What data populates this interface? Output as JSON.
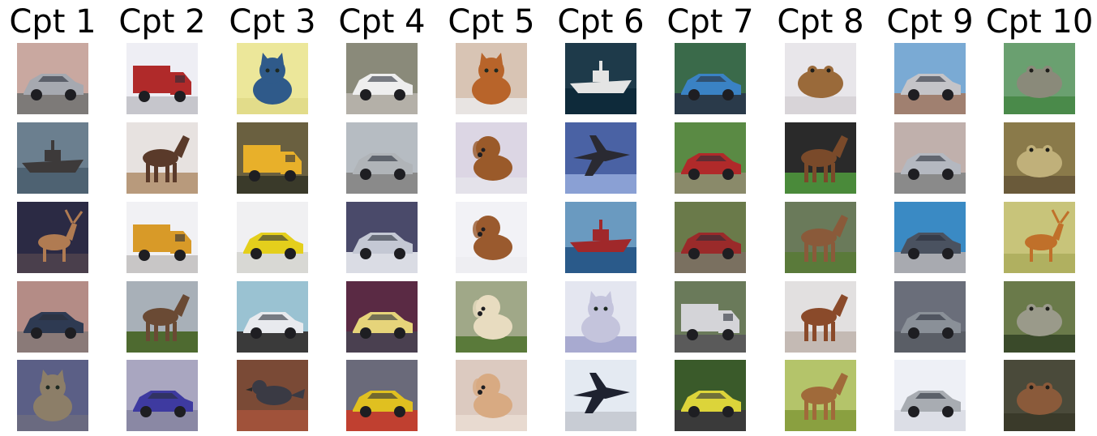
{
  "columns": [
    {
      "title": "Cpt 1",
      "images": [
        {
          "subject": "car",
          "colors": {
            "bg": "#c9a8a0",
            "main": "#a6a9b0",
            "ground": "#7d7a78"
          }
        },
        {
          "subject": "ship",
          "colors": {
            "bg": "#6b7f8f",
            "main": "#3d3a3a",
            "ground": "#4e6272"
          }
        },
        {
          "subject": "deer",
          "colors": {
            "bg": "#2b2a44",
            "main": "#b07b52",
            "ground": "#4a3f4c"
          }
        },
        {
          "subject": "car",
          "colors": {
            "bg": "#b48c86",
            "main": "#2e3a52",
            "ground": "#8a7a78"
          }
        },
        {
          "subject": "cat",
          "colors": {
            "bg": "#5b5f86",
            "main": "#8c7e68",
            "ground": "#6a6a80"
          }
        }
      ]
    },
    {
      "title": "Cpt 2",
      "images": [
        {
          "subject": "truck",
          "colors": {
            "bg": "#eeeef4",
            "main": "#b02a2a",
            "ground": "#c6c6cc"
          }
        },
        {
          "subject": "horse",
          "colors": {
            "bg": "#e7e2e0",
            "main": "#5a3a2a",
            "ground": "#b89a7c"
          }
        },
        {
          "subject": "truck",
          "colors": {
            "bg": "#f1f1f4",
            "main": "#d89a28",
            "ground": "#c8c6c6"
          }
        },
        {
          "subject": "horse",
          "colors": {
            "bg": "#a8b0b8",
            "main": "#6a4a34",
            "ground": "#4e6a30"
          }
        },
        {
          "subject": "car",
          "colors": {
            "bg": "#a9a6c0",
            "main": "#3e3aa0",
            "ground": "#8a88a4"
          }
        }
      ]
    },
    {
      "title": "Cpt 3",
      "images": [
        {
          "subject": "cat",
          "colors": {
            "bg": "#ece79a",
            "main": "#2f5a8a",
            "ground": "#e2dc8a"
          }
        },
        {
          "subject": "truck",
          "colors": {
            "bg": "#6a6040",
            "main": "#e8b02a",
            "ground": "#3a3a2a"
          }
        },
        {
          "subject": "car",
          "colors": {
            "bg": "#f0f0f2",
            "main": "#e4cf1c",
            "ground": "#d8d8d4"
          }
        },
        {
          "subject": "car",
          "colors": {
            "bg": "#9ac2d2",
            "main": "#e8eaee",
            "ground": "#3a3a3a"
          }
        },
        {
          "subject": "bird",
          "colors": {
            "bg": "#7a4a36",
            "main": "#3a3a44",
            "ground": "#a0523a"
          }
        }
      ]
    },
    {
      "title": "Cpt 4",
      "images": [
        {
          "subject": "car",
          "colors": {
            "bg": "#8a8a7a",
            "main": "#eeeeee",
            "ground": "#b4b0a8"
          }
        },
        {
          "subject": "car",
          "colors": {
            "bg": "#b6bcc2",
            "main": "#b0b4b8",
            "ground": "#8a8a8a"
          }
        },
        {
          "subject": "car",
          "colors": {
            "bg": "#4a4a6a",
            "main": "#c4c8d4",
            "ground": "#dadce4"
          }
        },
        {
          "subject": "car",
          "colors": {
            "bg": "#5a2a44",
            "main": "#e6d47a",
            "ground": "#4a4050"
          }
        },
        {
          "subject": "car",
          "colors": {
            "bg": "#6a6a7a",
            "main": "#e0c020",
            "ground": "#c04030"
          }
        }
      ]
    },
    {
      "title": "Cpt 5",
      "images": [
        {
          "subject": "cat",
          "colors": {
            "bg": "#d8c4b4",
            "main": "#b8642a",
            "ground": "#e8e4e2"
          }
        },
        {
          "subject": "dog",
          "colors": {
            "bg": "#dcd6e4",
            "main": "#9a5a2a",
            "ground": "#e4e2ea"
          }
        },
        {
          "subject": "dog",
          "colors": {
            "bg": "#f2f2f6",
            "main": "#9a5a2e",
            "ground": "#eeeef2"
          }
        },
        {
          "subject": "dog",
          "colors": {
            "bg": "#a0a888",
            "main": "#e8dcc0",
            "ground": "#5a7a3a"
          }
        },
        {
          "subject": "dog",
          "colors": {
            "bg": "#dccac0",
            "main": "#d8aa82",
            "ground": "#e8dad0"
          }
        }
      ]
    },
    {
      "title": "Cpt 6",
      "images": [
        {
          "subject": "ship",
          "colors": {
            "bg": "#1e3a4a",
            "main": "#e4e4e4",
            "ground": "#0e2a3a"
          }
        },
        {
          "subject": "airplane",
          "colors": {
            "bg": "#4a62a4",
            "main": "#2a2a32",
            "ground": "#8aa0d4"
          }
        },
        {
          "subject": "ship",
          "colors": {
            "bg": "#6a9ac0",
            "main": "#a0282a",
            "ground": "#2a5a8a"
          }
        },
        {
          "subject": "cat",
          "colors": {
            "bg": "#e4e6f0",
            "main": "#c4c4dc",
            "ground": "#a8aad0"
          }
        },
        {
          "subject": "airplane",
          "colors": {
            "bg": "#e4eaf2",
            "main": "#1e2230",
            "ground": "#c8ccd4"
          }
        }
      ]
    },
    {
      "title": "Cpt 7",
      "images": [
        {
          "subject": "car",
          "colors": {
            "bg": "#3a6a4a",
            "main": "#3a82c4",
            "ground": "#2a3a4a"
          }
        },
        {
          "subject": "car",
          "colors": {
            "bg": "#5a8a44",
            "main": "#b02a2a",
            "ground": "#8a8a6a"
          }
        },
        {
          "subject": "car",
          "colors": {
            "bg": "#6a7a4a",
            "main": "#9a2a2a",
            "ground": "#7a7060"
          }
        },
        {
          "subject": "truck",
          "colors": {
            "bg": "#6a7a5a",
            "main": "#d4d4d8",
            "ground": "#5a5a5a"
          }
        },
        {
          "subject": "car",
          "colors": {
            "bg": "#3a5a2a",
            "main": "#dcd43a",
            "ground": "#3a3a3a"
          }
        }
      ]
    },
    {
      "title": "Cpt 8",
      "images": [
        {
          "subject": "frog",
          "colors": {
            "bg": "#e8e6ea",
            "main": "#9a6a3a",
            "ground": "#d8d4d8"
          }
        },
        {
          "subject": "horse",
          "colors": {
            "bg": "#2a2a2a",
            "main": "#7a4a2a",
            "ground": "#4a8a3a"
          }
        },
        {
          "subject": "horse",
          "colors": {
            "bg": "#6a7a5a",
            "main": "#8a5a3a",
            "ground": "#5a7a3a"
          }
        },
        {
          "subject": "horse",
          "colors": {
            "bg": "#e2e0e0",
            "main": "#8a4a2a",
            "ground": "#c4bab4"
          }
        },
        {
          "subject": "horse",
          "colors": {
            "bg": "#b4c46a",
            "main": "#a06a3a",
            "ground": "#8aa040"
          }
        }
      ]
    },
    {
      "title": "Cpt 9",
      "images": [
        {
          "subject": "car",
          "colors": {
            "bg": "#7aaad4",
            "main": "#c4c4c8",
            "ground": "#a08070"
          }
        },
        {
          "subject": "car",
          "colors": {
            "bg": "#c0b0ac",
            "main": "#b4b8c0",
            "ground": "#8a8a8a"
          }
        },
        {
          "subject": "car",
          "colors": {
            "bg": "#3a8ac4",
            "main": "#4a5260",
            "ground": "#a8aab0"
          }
        },
        {
          "subject": "car",
          "colors": {
            "bg": "#6a6e7a",
            "main": "#8a9098",
            "ground": "#5a5e66"
          }
        },
        {
          "subject": "car",
          "colors": {
            "bg": "#eef0f6",
            "main": "#a8acb2",
            "ground": "#dcdee6"
          }
        }
      ]
    },
    {
      "title": "Cpt 10",
      "images": [
        {
          "subject": "frog",
          "colors": {
            "bg": "#6aa070",
            "main": "#8a8a7a",
            "ground": "#4a8a4a"
          }
        },
        {
          "subject": "frog",
          "colors": {
            "bg": "#8a7a4a",
            "main": "#c0b07a",
            "ground": "#6a5a3a"
          }
        },
        {
          "subject": "deer",
          "colors": {
            "bg": "#c8c47a",
            "main": "#c0702a",
            "ground": "#b0b060"
          }
        },
        {
          "subject": "frog",
          "colors": {
            "bg": "#6a7a4a",
            "main": "#9a9a8a",
            "ground": "#3a4a2a"
          }
        },
        {
          "subject": "frog",
          "colors": {
            "bg": "#4a4a3a",
            "main": "#8a5a3a",
            "ground": "#3a3a2a"
          }
        }
      ]
    }
  ]
}
